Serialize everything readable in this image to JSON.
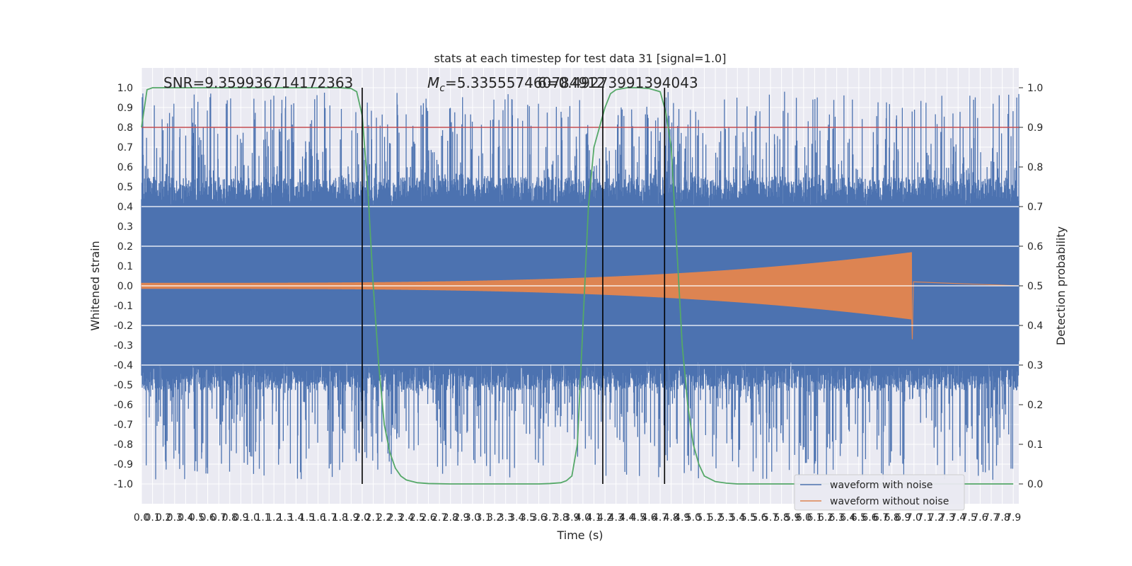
{
  "chart_data": {
    "type": "line",
    "title": "stats at each timestep for test data 31 [signal=1.0]",
    "xlabel": "Time (s)",
    "ylabel": "Whitened strain",
    "ylabel_right": "Detection probability",
    "xlim": [
      0.0,
      7.95
    ],
    "ylim": [
      -1.1,
      1.1
    ],
    "ylim_right": [
      -0.05,
      1.05
    ],
    "x_ticks": [
      0.0,
      0.1,
      0.2,
      0.3,
      0.4,
      0.5,
      0.6,
      0.7,
      0.8,
      0.9,
      1.0,
      1.1,
      1.2,
      1.3,
      1.4,
      1.5,
      1.6,
      1.7,
      1.8,
      1.9,
      2.0,
      2.1,
      2.2,
      2.3,
      2.4,
      2.5,
      2.6,
      2.7,
      2.8,
      2.9,
      3.0,
      3.1,
      3.2,
      3.3,
      3.4,
      3.5,
      3.6,
      3.7,
      3.8,
      3.9,
      4.0,
      4.1,
      4.2,
      4.3,
      4.4,
      4.5,
      4.6,
      4.7,
      4.8,
      4.9,
      5.0,
      5.1,
      5.2,
      5.3,
      5.4,
      5.5,
      5.6,
      5.7,
      5.8,
      5.9,
      6.0,
      6.1,
      6.2,
      6.3,
      6.4,
      6.5,
      6.6,
      6.7,
      6.8,
      6.9,
      7.0,
      7.1,
      7.2,
      7.3,
      7.4,
      7.5,
      7.6,
      7.7,
      7.8,
      7.9
    ],
    "y_ticks": [
      -1.0,
      -0.9,
      -0.8,
      -0.7,
      -0.6,
      -0.5,
      -0.4,
      -0.3,
      -0.2,
      -0.1,
      0.0,
      0.1,
      0.2,
      0.3,
      0.4,
      0.5,
      0.6,
      0.7,
      0.8,
      0.9,
      1.0
    ],
    "y_ticks_right": [
      0.0,
      0.1,
      0.2,
      0.3,
      0.4,
      0.5,
      0.6,
      0.7,
      0.8,
      0.9,
      1.0
    ],
    "grid": true,
    "annotations": {
      "snr": "SNR=9.359936714172363",
      "mc_prefix": "M",
      "mc_sub": "c",
      "mc_value": "=5.335557460784912",
      "overlap": "6=0.49273991394043"
    },
    "threshold": {
      "value_right": 0.9,
      "color": "#c44e52"
    },
    "vertical_lines": [
      2.0,
      4.18,
      4.74
    ],
    "series": [
      {
        "name": "waveform with noise",
        "color": "#4c72b0",
        "kind": "noise",
        "core_band": [
          -0.38,
          0.4
        ],
        "max_peak": 0.98,
        "min_peak": -0.98
      },
      {
        "name": "waveform without noise",
        "color": "#dd8452",
        "kind": "chirp",
        "start_amp": 0.015,
        "end_amp": 0.17,
        "merger_time": 6.98,
        "min_value": -0.27
      },
      {
        "name": "Detection probability",
        "color": "#55a868",
        "axis": "right",
        "x": [
          0.0,
          0.05,
          0.1,
          0.2,
          0.4,
          0.6,
          0.8,
          1.0,
          1.2,
          1.4,
          1.6,
          1.7,
          1.8,
          1.9,
          1.95,
          2.0,
          2.05,
          2.1,
          2.15,
          2.2,
          2.25,
          2.3,
          2.35,
          2.4,
          2.5,
          2.6,
          2.8,
          3.0,
          3.2,
          3.4,
          3.6,
          3.7,
          3.8,
          3.85,
          3.9,
          3.95,
          4.0,
          4.05,
          4.1,
          4.15,
          4.2,
          4.25,
          4.3,
          4.4,
          4.5,
          4.6,
          4.7,
          4.75,
          4.8,
          4.85,
          4.9,
          4.95,
          5.0,
          5.05,
          5.1,
          5.2,
          5.3,
          5.4,
          5.5,
          5.7,
          6.0,
          6.5,
          7.0,
          7.5,
          7.9
        ],
        "y": [
          0.9,
          0.995,
          1.0,
          1.0,
          1.0,
          1.0,
          1.0,
          1.0,
          1.0,
          1.0,
          1.0,
          1.0,
          1.0,
          0.998,
          0.99,
          0.93,
          0.75,
          0.5,
          0.3,
          0.15,
          0.08,
          0.04,
          0.02,
          0.01,
          0.003,
          0.001,
          0.0,
          0.0,
          0.0,
          0.0,
          0.0,
          0.001,
          0.003,
          0.008,
          0.02,
          0.1,
          0.4,
          0.7,
          0.85,
          0.9,
          0.95,
          0.985,
          0.995,
          1.0,
          1.0,
          0.998,
          0.99,
          0.94,
          0.85,
          0.6,
          0.35,
          0.2,
          0.1,
          0.05,
          0.02,
          0.006,
          0.002,
          0.0,
          0.0,
          0.0,
          0.0,
          0.0,
          0.0,
          0.0,
          0.0
        ]
      }
    ],
    "legend": {
      "location": "lower-right",
      "entries": [
        "waveform with noise",
        "waveform without noise"
      ]
    }
  }
}
